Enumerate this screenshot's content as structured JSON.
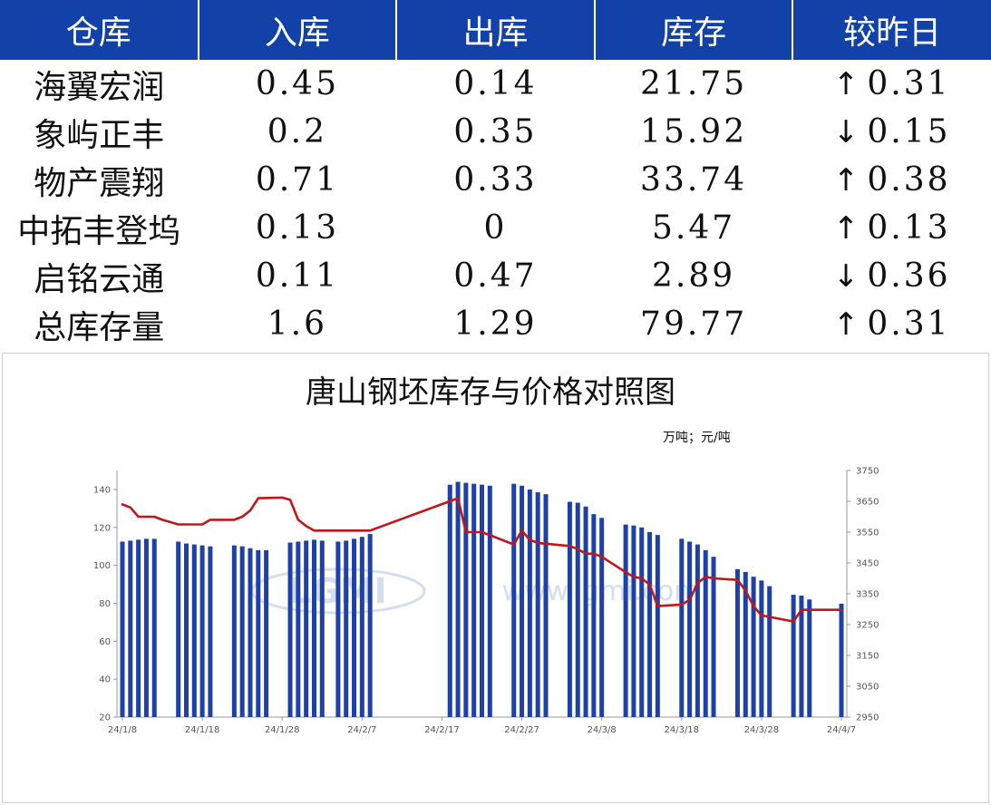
{
  "table": {
    "headers": [
      "仓库",
      "入库",
      "出库",
      "库存",
      "较昨日"
    ],
    "rows": [
      {
        "name": "海翼宏润",
        "in": "0.45",
        "out": "0.14",
        "stock": "21.75",
        "dir": "up",
        "arrow": "↑",
        "change": "0.31"
      },
      {
        "name": "象屿正丰",
        "in": "0.2",
        "out": "0.35",
        "stock": "15.92",
        "dir": "down",
        "arrow": "↓",
        "change": "0.15"
      },
      {
        "name": "物产震翔",
        "in": "0.71",
        "out": "0.33",
        "stock": "33.74",
        "dir": "up",
        "arrow": "↑",
        "change": "0.38"
      },
      {
        "name": "中拓丰登坞",
        "in": "0.13",
        "out": "0",
        "stock": "5.47",
        "dir": "up",
        "arrow": "↑",
        "change": "0.13"
      },
      {
        "name": "启铭云通",
        "in": "0.11",
        "out": "0.47",
        "stock": "2.89",
        "dir": "down",
        "arrow": "↓",
        "change": "0.36"
      },
      {
        "name": "总库存量",
        "in": "1.6",
        "out": "1.29",
        "stock": "79.77",
        "dir": "up",
        "arrow": "↑",
        "change": "0.31"
      }
    ],
    "colors": {
      "header_bg": "#1241a8",
      "up": "#e8141c",
      "down": "#0a9c3e"
    }
  },
  "chart_data": {
    "type": "bar+line",
    "title": "唐山钢坯库存与价格对照图",
    "unit_label": "万吨；元/吨",
    "watermark": "www.lgmi.com",
    "x_start": "2024-01-08",
    "x_ticks": [
      "24/1/8",
      "24/1/18",
      "24/1/28",
      "24/2/7",
      "24/2/17",
      "24/2/27",
      "24/3/8",
      "24/3/18",
      "24/3/28",
      "24/4/7"
    ],
    "y_left": {
      "min": 20,
      "max": 150,
      "ticks": [
        20,
        40,
        60,
        80,
        100,
        120,
        140
      ]
    },
    "y_right": {
      "min": 2950,
      "max": 3750,
      "ticks": [
        2950,
        3050,
        3150,
        3250,
        3350,
        3450,
        3550,
        3650,
        3750
      ]
    },
    "bar_color": "#1f40a6",
    "line_color": "#c0161c",
    "series": [
      {
        "kind": "bar",
        "axis": "left",
        "points": [
          [
            "2024-01-08",
            112.5
          ],
          [
            "2024-01-09",
            113.0
          ],
          [
            "2024-01-10",
            113.5
          ],
          [
            "2024-01-11",
            114.0
          ],
          [
            "2024-01-12",
            114.0
          ],
          [
            "2024-01-15",
            112.5
          ],
          [
            "2024-01-16",
            111.5
          ],
          [
            "2024-01-17",
            111.0
          ],
          [
            "2024-01-18",
            110.5
          ],
          [
            "2024-01-19",
            110.0
          ],
          [
            "2024-01-22",
            110.5
          ],
          [
            "2024-01-23",
            110.0
          ],
          [
            "2024-01-24",
            109.0
          ],
          [
            "2024-01-25",
            108.0
          ],
          [
            "2024-01-26",
            108.0
          ],
          [
            "2024-01-29",
            112.0
          ],
          [
            "2024-01-30",
            112.5
          ],
          [
            "2024-01-31",
            113.0
          ],
          [
            "2024-02-01",
            113.5
          ],
          [
            "2024-02-02",
            113.0
          ],
          [
            "2024-02-04",
            112.5
          ],
          [
            "2024-02-05",
            113.0
          ],
          [
            "2024-02-06",
            114.0
          ],
          [
            "2024-02-07",
            115.0
          ],
          [
            "2024-02-08",
            116.5
          ],
          [
            "2024-02-18",
            142.5
          ],
          [
            "2024-02-19",
            144.0
          ],
          [
            "2024-02-20",
            143.5
          ],
          [
            "2024-02-21",
            143.0
          ],
          [
            "2024-02-22",
            142.5
          ],
          [
            "2024-02-23",
            142.0
          ],
          [
            "2024-02-26",
            143.0
          ],
          [
            "2024-02-27",
            142.0
          ],
          [
            "2024-02-28",
            140.0
          ],
          [
            "2024-02-29",
            138.5
          ],
          [
            "2024-03-01",
            137.5
          ],
          [
            "2024-03-04",
            133.5
          ],
          [
            "2024-03-05",
            133.0
          ],
          [
            "2024-03-06",
            131.0
          ],
          [
            "2024-03-07",
            127.0
          ],
          [
            "2024-03-08",
            125.0
          ],
          [
            "2024-03-11",
            121.5
          ],
          [
            "2024-03-12",
            121.0
          ],
          [
            "2024-03-13",
            120.0
          ],
          [
            "2024-03-14",
            117.5
          ],
          [
            "2024-03-15",
            116.0
          ],
          [
            "2024-03-18",
            114.0
          ],
          [
            "2024-03-19",
            112.5
          ],
          [
            "2024-03-20",
            111.0
          ],
          [
            "2024-03-21",
            108.0
          ],
          [
            "2024-03-22",
            104.5
          ],
          [
            "2024-03-25",
            98.0
          ],
          [
            "2024-03-26",
            96.5
          ],
          [
            "2024-03-27",
            94.0
          ],
          [
            "2024-03-28",
            92.0
          ],
          [
            "2024-03-29",
            89.0
          ],
          [
            "2024-04-01",
            84.5
          ],
          [
            "2024-04-02",
            84.0
          ],
          [
            "2024-04-03",
            82.0
          ],
          [
            "2024-04-07",
            79.77
          ]
        ]
      },
      {
        "kind": "line",
        "axis": "right",
        "points": [
          [
            "2024-01-08",
            3640
          ],
          [
            "2024-01-09",
            3630
          ],
          [
            "2024-01-10",
            3600
          ],
          [
            "2024-01-12",
            3600
          ],
          [
            "2024-01-13",
            3590
          ],
          [
            "2024-01-15",
            3575
          ],
          [
            "2024-01-18",
            3575
          ],
          [
            "2024-01-19",
            3590
          ],
          [
            "2024-01-22",
            3590
          ],
          [
            "2024-01-23",
            3600
          ],
          [
            "2024-01-24",
            3620
          ],
          [
            "2024-01-25",
            3660
          ],
          [
            "2024-01-28",
            3662
          ],
          [
            "2024-01-29",
            3655
          ],
          [
            "2024-01-30",
            3590
          ],
          [
            "2024-01-31",
            3570
          ],
          [
            "2024-02-01",
            3555
          ],
          [
            "2024-02-08",
            3555
          ],
          [
            "2024-02-19",
            3660
          ],
          [
            "2024-02-20",
            3550
          ],
          [
            "2024-02-21",
            3550
          ],
          [
            "2024-02-22",
            3550
          ],
          [
            "2024-02-23",
            3540
          ],
          [
            "2024-02-26",
            3510
          ],
          [
            "2024-02-27",
            3555
          ],
          [
            "2024-02-28",
            3525
          ],
          [
            "2024-02-29",
            3515
          ],
          [
            "2024-03-04",
            3505
          ],
          [
            "2024-03-05",
            3495
          ],
          [
            "2024-03-06",
            3480
          ],
          [
            "2024-03-07",
            3480
          ],
          [
            "2024-03-08",
            3470
          ],
          [
            "2024-03-11",
            3420
          ],
          [
            "2024-03-12",
            3405
          ],
          [
            "2024-03-13",
            3400
          ],
          [
            "2024-03-14",
            3380
          ],
          [
            "2024-03-15",
            3310
          ],
          [
            "2024-03-18",
            3315
          ],
          [
            "2024-03-19",
            3330
          ],
          [
            "2024-03-20",
            3385
          ],
          [
            "2024-03-21",
            3405
          ],
          [
            "2024-03-22",
            3400
          ],
          [
            "2024-03-25",
            3395
          ],
          [
            "2024-03-26",
            3360
          ],
          [
            "2024-03-27",
            3310
          ],
          [
            "2024-03-28",
            3280
          ],
          [
            "2024-03-29",
            3275
          ],
          [
            "2024-04-01",
            3260
          ],
          [
            "2024-04-02",
            3298
          ],
          [
            "2024-04-07",
            3298
          ]
        ]
      }
    ]
  }
}
